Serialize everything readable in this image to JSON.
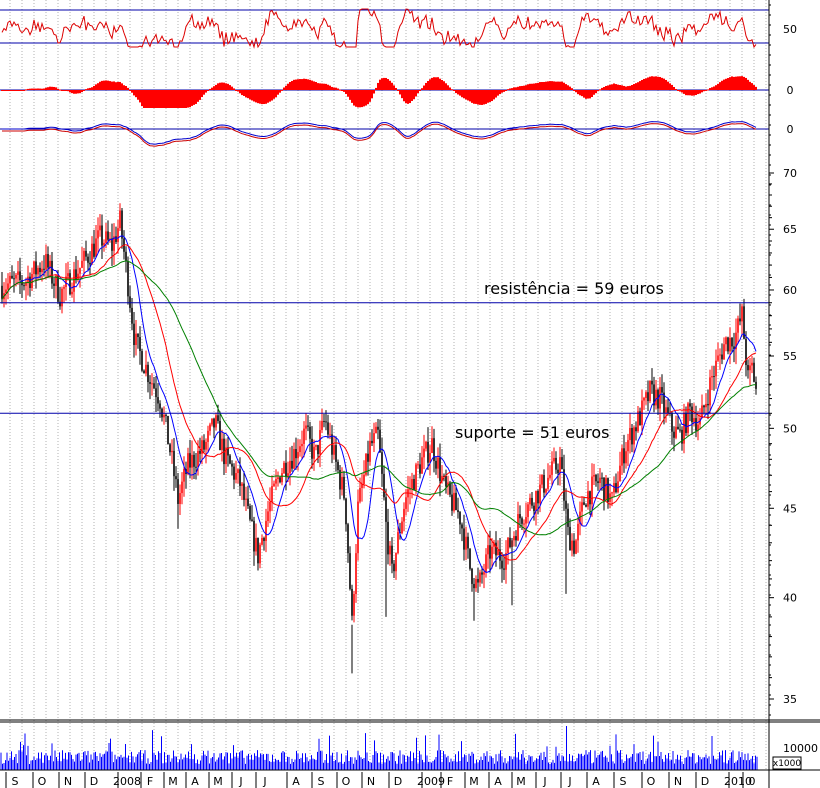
{
  "chart_data": {
    "type": "candlestick",
    "annotations": [
      {
        "text": "resistência = 59 euros",
        "y": 59
      },
      {
        "text": "suporte = 51 euros",
        "y": 51
      }
    ],
    "price_axis": {
      "ticks": [
        35,
        40,
        45,
        50,
        55,
        60,
        65,
        70
      ],
      "scale": "log",
      "ylim": [
        33.5,
        73
      ]
    },
    "oscillator_labels": {
      "rsi": "50",
      "macd_hist": "0",
      "macd_line": "0"
    },
    "volume_axis": {
      "tick": "10000",
      "multiplier": "x1000"
    },
    "x_labels": [
      "S",
      "O",
      "N",
      "D",
      "2008",
      "F",
      "M",
      "A",
      "M",
      "J",
      "J",
      "A",
      "S",
      "O",
      "N",
      "D",
      "2009",
      "F",
      "M",
      "A",
      "M",
      "J",
      "J",
      "A",
      "S",
      "O",
      "N",
      "D",
      "2010",
      "0"
    ],
    "colors": {
      "up": "#ff0000",
      "down": "#000000",
      "line": "#0000aa",
      "ma_blue": "#0000ff",
      "ma_red": "#ff0000",
      "ma_green": "#008000",
      "volume": "#0000ff"
    },
    "price_path": [
      [
        0,
        60.3
      ],
      [
        25,
        60.7
      ],
      [
        45,
        62.3
      ],
      [
        60,
        59.6
      ],
      [
        80,
        61.8
      ],
      [
        100,
        64.3
      ],
      [
        112,
        63.6
      ],
      [
        120,
        65.6
      ],
      [
        128,
        60.5
      ],
      [
        135,
        56.0
      ],
      [
        150,
        53.5
      ],
      [
        160,
        52.0
      ],
      [
        170,
        48.6
      ],
      [
        178,
        45.5
      ],
      [
        188,
        47.6
      ],
      [
        205,
        48.8
      ],
      [
        215,
        50.4
      ],
      [
        225,
        48.1
      ],
      [
        240,
        46.5
      ],
      [
        250,
        44.0
      ],
      [
        258,
        42.3
      ],
      [
        268,
        44.8
      ],
      [
        280,
        47.2
      ],
      [
        295,
        48.5
      ],
      [
        305,
        49.8
      ],
      [
        315,
        48.1
      ],
      [
        325,
        50.6
      ],
      [
        335,
        47.9
      ],
      [
        345,
        45.6
      ],
      [
        352,
        38.6
      ],
      [
        358,
        45.0
      ],
      [
        370,
        48.8
      ],
      [
        378,
        49.5
      ],
      [
        386,
        44.0
      ],
      [
        392,
        41.2
      ],
      [
        405,
        45.5
      ],
      [
        420,
        47.7
      ],
      [
        432,
        49.0
      ],
      [
        445,
        46.1
      ],
      [
        460,
        44.5
      ],
      [
        470,
        41.6
      ],
      [
        478,
        40.5
      ],
      [
        490,
        42.5
      ],
      [
        505,
        42.2
      ],
      [
        520,
        44.5
      ],
      [
        535,
        45.7
      ],
      [
        550,
        47.0
      ],
      [
        560,
        47.9
      ],
      [
        568,
        43.5
      ],
      [
        575,
        42.8
      ],
      [
        585,
        45.7
      ],
      [
        600,
        46.7
      ],
      [
        612,
        45.4
      ],
      [
        625,
        48.8
      ],
      [
        640,
        50.8
      ],
      [
        650,
        52.4
      ],
      [
        660,
        52.0
      ],
      [
        672,
        50.0
      ],
      [
        680,
        49.5
      ],
      [
        690,
        51.2
      ],
      [
        700,
        50.3
      ],
      [
        712,
        53.5
      ],
      [
        725,
        56.0
      ],
      [
        735,
        56.4
      ],
      [
        742,
        58.0
      ],
      [
        748,
        53.3
      ],
      [
        752,
        54.2
      ],
      [
        757,
        52.3
      ]
    ]
  }
}
